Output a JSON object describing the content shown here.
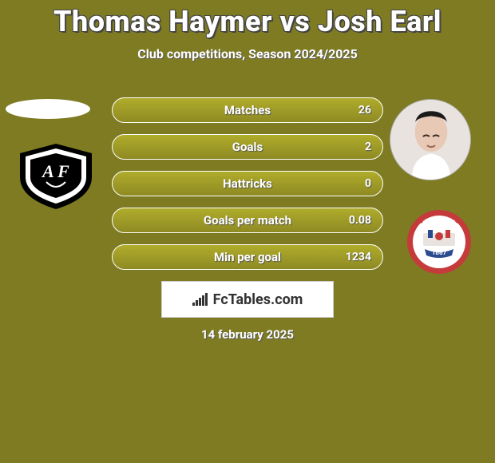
{
  "background_color": "#7e7b23",
  "title": "Thomas Haymer vs Josh Earl",
  "subtitle": "Club competitions, Season 2024/2025",
  "footer_date": "14 february 2025",
  "branding_label": "FcTables.com",
  "stats": {
    "type": "bar",
    "bar_color_top": "#b0ac2b",
    "bar_color_bottom": "#8e8a23",
    "border_color": "#ffffff",
    "label_fontsize": 15,
    "value_fontsize": 14,
    "text_color": "#ffffff",
    "rows": [
      {
        "label": "Matches",
        "value": "26"
      },
      {
        "label": "Goals",
        "value": "2"
      },
      {
        "label": "Hattricks",
        "value": "0"
      },
      {
        "label": "Goals per match",
        "value": "0.08"
      },
      {
        "label": "Min per goal",
        "value": "1234"
      }
    ]
  },
  "player1": {
    "placeholder_bg": "#ffffff",
    "club_shield_colors": {
      "outer": "#000000",
      "inner": "#ffffff"
    }
  },
  "player2": {
    "avatar_bg": "#e8e3df",
    "skin": "#e8c9b5",
    "hair": "#1a1a1a",
    "shirt": "#ffffff",
    "crest": {
      "ring": "#c53a3a",
      "inner_bg": "#ffffff",
      "banner": "#2a4b8d",
      "year": "1887",
      "name": "BARNSLEY FC"
    }
  }
}
